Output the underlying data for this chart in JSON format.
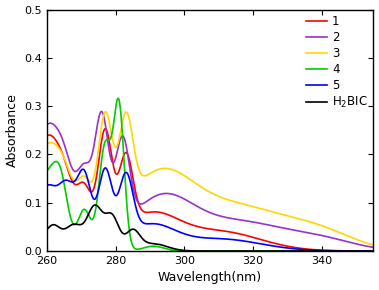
{
  "title": "",
  "xlabel": "Wavelength(nm)",
  "ylabel": "Absorbance",
  "xlim": [
    260,
    355
  ],
  "ylim": [
    0,
    0.5
  ],
  "xticks": [
    260,
    280,
    300,
    320,
    340
  ],
  "yticks": [
    0.0,
    0.1,
    0.2,
    0.3,
    0.4,
    0.5
  ],
  "colors": {
    "1": "#ff0000",
    "2": "#9932CC",
    "3": "#FFD700",
    "4": "#00cc00",
    "5": "#0000ff",
    "H2BIC": "#000000"
  },
  "figsize": [
    3.79,
    2.9
  ],
  "dpi": 100,
  "background": "#ffffff"
}
